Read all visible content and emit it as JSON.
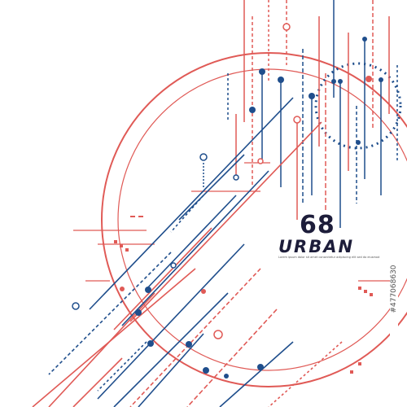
{
  "title": {
    "number": "68",
    "word": "URBAN",
    "tagline": "Lorem ipsum dolor sit amet consectetur adipiscing elit sed do eiusmod"
  },
  "watermark": {
    "stock_id": "#477068630"
  },
  "colors": {
    "red": "#e05a56",
    "blue": "#1f4e8c",
    "background": "#ffffff",
    "text": "#1d1d3a"
  }
}
